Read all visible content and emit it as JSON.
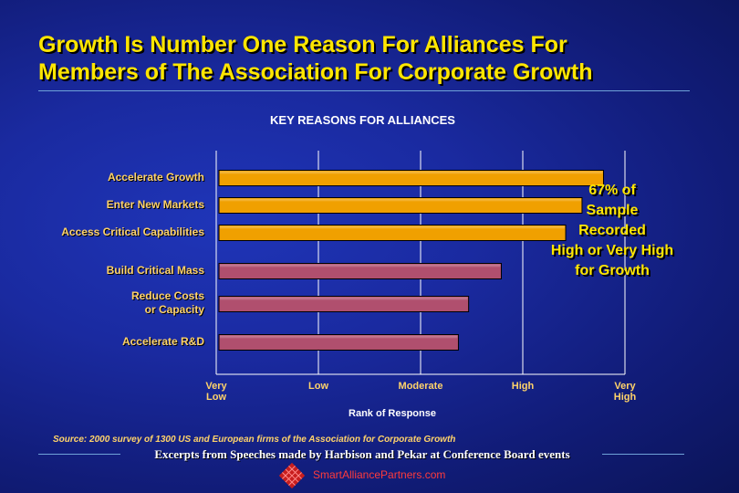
{
  "title": {
    "line1": "Growth Is Number One Reason For Alliances For",
    "line2": "Members of The Association For Corporate Growth"
  },
  "chart_data": {
    "type": "bar",
    "orientation": "horizontal",
    "title": "KEY REASONS FOR ALLIANCES",
    "xlabel": "Rank of Response",
    "ylabel": "",
    "categories": [
      [
        "Accelerate Growth"
      ],
      [
        "Enter New Markets"
      ],
      [
        "Access Critical Capabilities"
      ],
      [
        "Build Critical Mass"
      ],
      [
        "Reduce Costs",
        "or Capacity"
      ],
      [
        "Accelerate R&D"
      ]
    ],
    "values": [
      3.79,
      3.58,
      3.42,
      2.79,
      2.47,
      2.37
    ],
    "bar_colors": [
      "#f0a000",
      "#f0a000",
      "#f0a000",
      "#b04f6e",
      "#b04f6e",
      "#b04f6e"
    ],
    "xlim": [
      0,
      4
    ],
    "ticks": [
      {
        "value": 0,
        "lines": [
          "Very",
          "Low"
        ]
      },
      {
        "value": 1,
        "lines": [
          "Low"
        ]
      },
      {
        "value": 2,
        "lines": [
          "Moderate"
        ]
      },
      {
        "value": 3,
        "lines": [
          "High"
        ]
      },
      {
        "value": 4,
        "lines": [
          "Very",
          "High"
        ]
      }
    ],
    "grid": true,
    "annotation": [
      "67% of",
      "Sample",
      "Recorded",
      "High or Very High",
      "for Growth"
    ]
  },
  "source": "Source: 2000 survey of 1300 US and European firms of the Association for Corporate Growth",
  "footer": {
    "excerpts": "Excerpts from Speeches made by Harbison and Pekar at Conference Board events",
    "site": "SmartAlliancePartners.com"
  },
  "colors": {
    "title": "#ffe600",
    "label": "#ffd36a",
    "site": "#ff3b3b"
  },
  "icons": {
    "logo": "diamond-grid-logo-icon"
  }
}
